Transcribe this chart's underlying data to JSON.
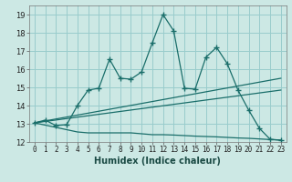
{
  "xlabel": "Humidex (Indice chaleur)",
  "background_color": "#cce8e4",
  "grid_color": "#99cccc",
  "line_color": "#1a6e6a",
  "xlim": [
    -0.5,
    23.5
  ],
  "ylim": [
    12,
    19.5
  ],
  "xticks": [
    0,
    1,
    2,
    3,
    4,
    5,
    6,
    7,
    8,
    9,
    10,
    11,
    12,
    13,
    14,
    15,
    16,
    17,
    18,
    19,
    20,
    21,
    22,
    23
  ],
  "yticks": [
    12,
    13,
    14,
    15,
    16,
    17,
    18,
    19
  ],
  "line1_x": [
    0,
    1,
    2,
    3,
    4,
    5,
    6,
    7,
    8,
    9,
    10,
    11,
    12,
    13,
    14,
    15,
    16,
    17,
    18,
    19,
    20,
    21,
    22,
    23
  ],
  "line1_y": [
    13.05,
    13.2,
    12.9,
    12.95,
    14.0,
    14.85,
    14.95,
    16.55,
    15.5,
    15.45,
    15.85,
    17.45,
    19.0,
    18.1,
    14.95,
    14.9,
    16.65,
    17.2,
    16.3,
    14.85,
    13.75,
    12.75,
    12.15,
    12.1
  ],
  "line2_x": [
    0,
    23
  ],
  "line2_y": [
    13.05,
    15.5
  ],
  "line3_x": [
    0,
    23
  ],
  "line3_y": [
    13.05,
    14.85
  ],
  "line4_x": [
    0,
    4,
    5,
    6,
    7,
    8,
    9,
    10,
    11,
    12,
    13,
    14,
    15,
    16,
    17,
    18,
    19,
    20,
    23
  ],
  "line4_y": [
    13.05,
    12.55,
    12.5,
    12.5,
    12.5,
    12.5,
    12.5,
    12.45,
    12.4,
    12.4,
    12.38,
    12.35,
    12.32,
    12.3,
    12.28,
    12.25,
    12.22,
    12.2,
    12.1
  ]
}
